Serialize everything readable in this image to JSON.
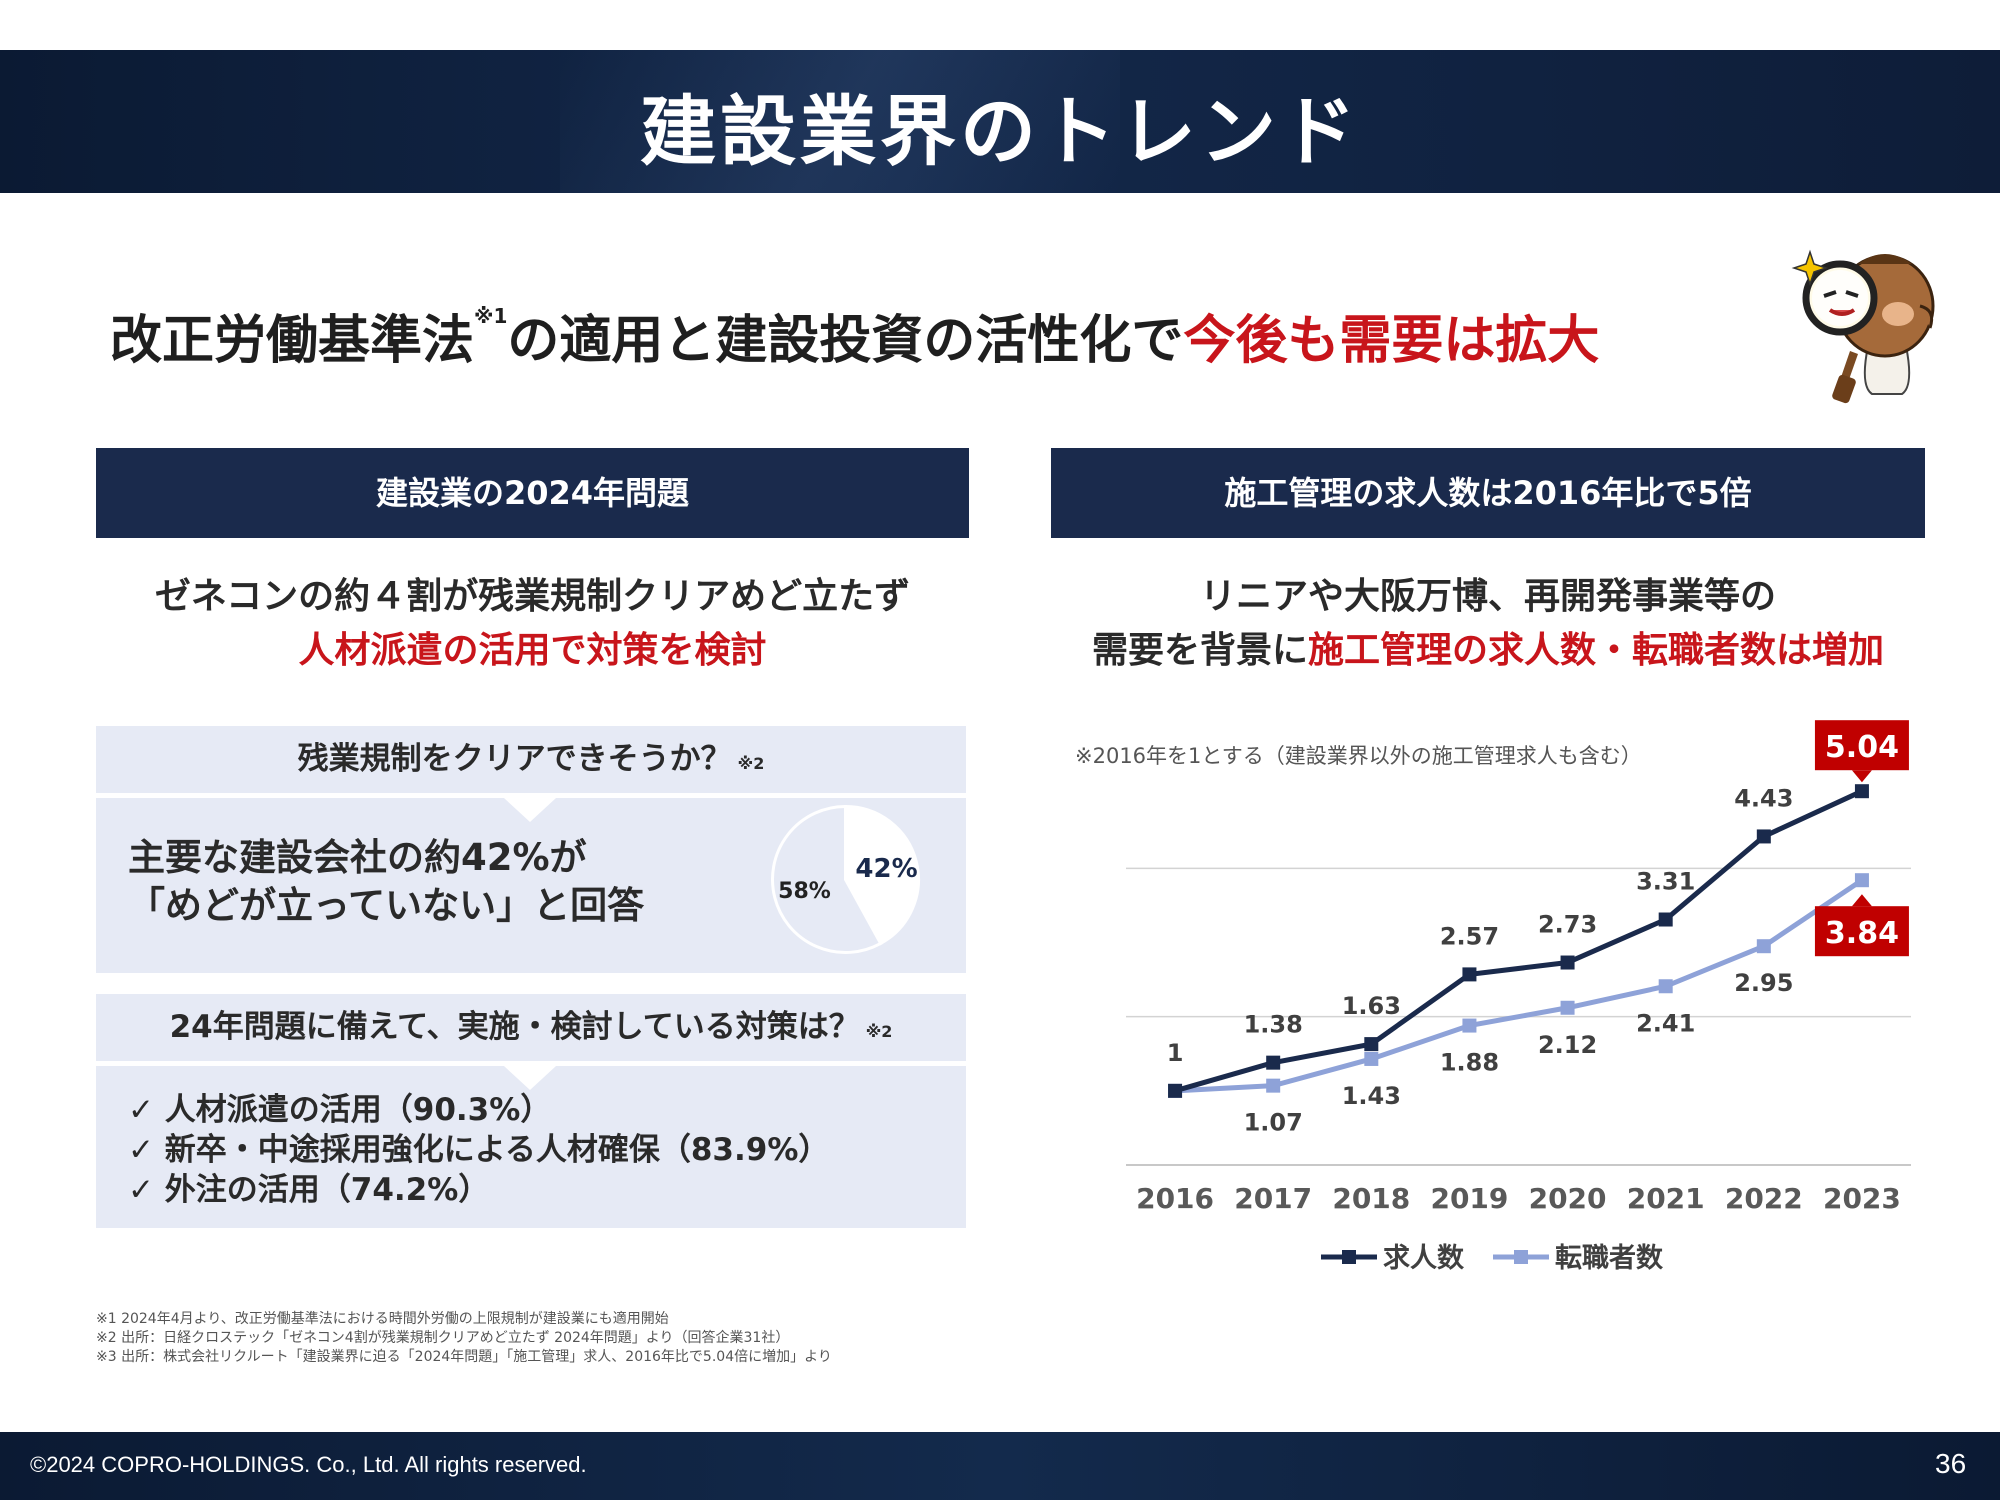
{
  "header": {
    "title": "建設業界のトレンド"
  },
  "headline": {
    "part1": "改正労働基準法",
    "note": "※1",
    "part2": "の適用と建設投資の活性化で",
    "highlight": "今後も需要は拡大"
  },
  "left_panel": {
    "title": "建設業の2024年問題",
    "sub_line1": "ゼネコンの約４割が残業規制クリアめど立たず",
    "sub_line2": "人材派遣の活用で対策を検討",
    "q1": "残業規制をクリアできそうか？",
    "q1_note": "※2",
    "answer_line1": "主要な建設会社の約42%が",
    "answer_line2": "「めどが立っていない」と回答",
    "pie": {
      "slices": [
        {
          "label": "42%",
          "value": 42,
          "color": "#ffffff"
        },
        {
          "label": "58%",
          "value": 58,
          "color": "#e6eaf5"
        }
      ]
    },
    "q2": "24年問題に備えて、実施・検討している対策は？",
    "q2_note": "※2",
    "measures": [
      "✓ 人材派遣の活用（90.3%）",
      "✓ 新卒・中途採用強化による人材確保（83.9%）",
      "✓ 外注の活用（74.2%）"
    ]
  },
  "right_panel": {
    "title": "施工管理の求人数は2016年比で5倍",
    "sub_line1": "リニアや大阪万博、再開発事業等の",
    "sub_line2_a": "需要を背景に",
    "sub_line2_b": "施工管理の求人数・転職者数は増加",
    "chart_note": "※2016年を1とする（建設業界以外の施工管理求人も含む）"
  },
  "chart_data": {
    "type": "line",
    "x": [
      "2016",
      "2017",
      "2018",
      "2019",
      "2020",
      "2021",
      "2022",
      "2023"
    ],
    "series": [
      {
        "name": "求人数",
        "values": [
          1,
          1.38,
          1.63,
          2.57,
          2.73,
          3.31,
          4.43,
          5.04
        ],
        "color": "#1a2a4c"
      },
      {
        "name": "転職者数",
        "values": [
          1,
          1.07,
          1.43,
          1.88,
          2.12,
          2.41,
          2.95,
          3.84
        ],
        "color": "#8ea2d8"
      }
    ],
    "ylim": [
      0,
      6
    ],
    "grid": true,
    "highlight_color": "#c00000",
    "legend_position": "bottom"
  },
  "footnotes": [
    "※1 2024年4月より、改正労働基準法における時間外労働の上限規制が建設業にも適用開始",
    "※2 出所：日経クロステック「ゼネコン4割が残業規制クリアめど立たず 2024年問題」より（回答企業31社）",
    "※3 出所：株式会社リクルート「建設業界に迫る「2024年問題」「施工管理」求人、2016年比で5.04倍に増加」より"
  ],
  "footer": {
    "copyright": "©2024 COPRO-HOLDINGS. Co., Ltd. All rights reserved.",
    "page": "36"
  }
}
